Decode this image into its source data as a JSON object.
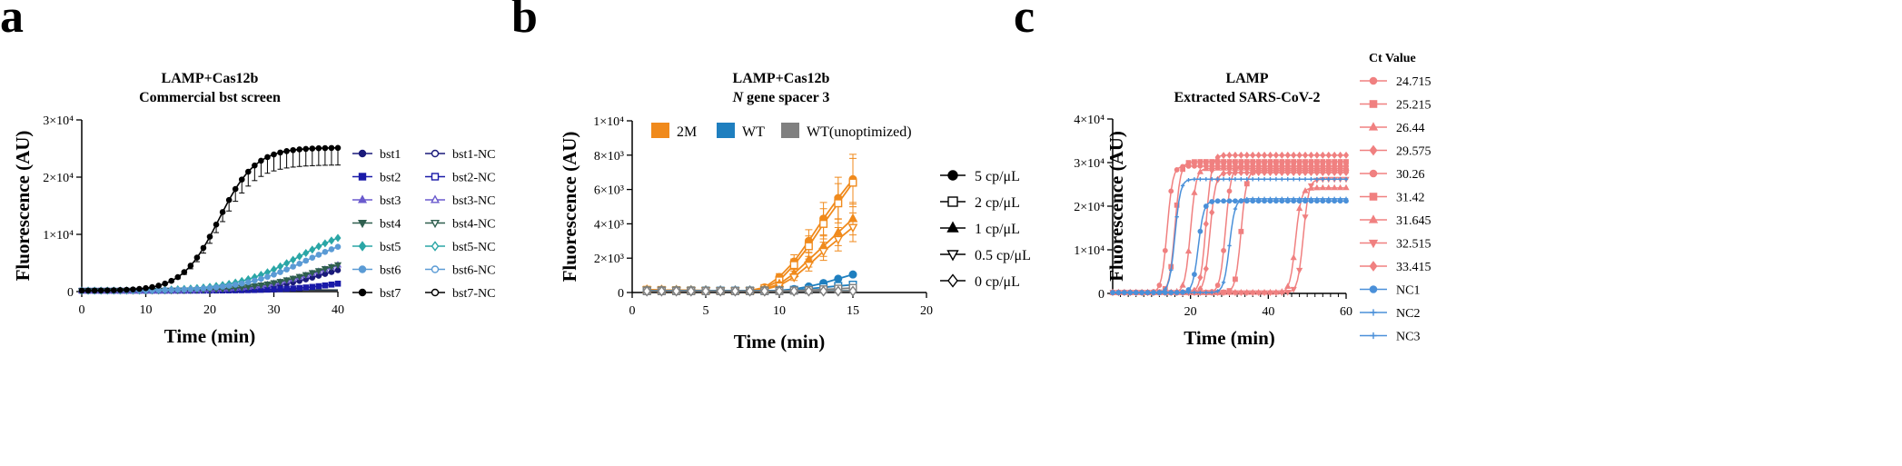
{
  "panels": {
    "a": {
      "label": "a"
    },
    "b": {
      "label": "b"
    },
    "c": {
      "label": "c"
    }
  },
  "chart_data": [
    {
      "id": "a",
      "type": "line",
      "title": [
        "LAMP+Cas12b",
        "Commercial bst screen"
      ],
      "xlabel": "Time (min)",
      "ylabel": "Fluorescence (AU)",
      "xlim": [
        0,
        40
      ],
      "ylim": [
        0,
        30000
      ],
      "xticks": [
        0,
        10,
        20,
        30,
        40
      ],
      "yticks": [
        {
          "value": 0,
          "label": "0"
        },
        {
          "value": 10000,
          "label": "1×10⁴"
        },
        {
          "value": 20000,
          "label": "2×10⁴"
        },
        {
          "value": 30000,
          "label": "3×10⁴"
        }
      ],
      "legend_position": "right",
      "series": [
        {
          "name": "bst1",
          "color": "#1a1a7a",
          "marker": "circle",
          "fill": true,
          "onset": 20,
          "max": 6000,
          "k": 0.22
        },
        {
          "name": "bst2",
          "color": "#1a1aa8",
          "marker": "square",
          "fill": true,
          "onset": 24,
          "max": 4000,
          "k": 0.2
        },
        {
          "name": "bst3",
          "color": "#6a5acd",
          "marker": "triangle",
          "fill": true,
          "onset": 18,
          "max": 7500,
          "k": 0.2
        },
        {
          "name": "bst4",
          "color": "#2f5f4f",
          "marker": "triangle-down",
          "fill": true,
          "onset": 17,
          "max": 7000,
          "k": 0.2
        },
        {
          "name": "bst5",
          "color": "#2aa6a6",
          "marker": "diamond",
          "fill": true,
          "onset": 14,
          "max": 12000,
          "k": 0.2
        },
        {
          "name": "bst6",
          "color": "#5b9bd5",
          "marker": "circle",
          "fill": true,
          "onset": 15,
          "max": 10500,
          "k": 0.2
        },
        {
          "name": "bst7",
          "color": "#000000",
          "marker": "circle",
          "fill": true,
          "onset": 10,
          "max": 25000,
          "k": 0.35,
          "errorbars": true
        },
        {
          "name": "bst1-NC",
          "color": "#1a1a7a",
          "marker": "circle",
          "fill": false
        },
        {
          "name": "bst2-NC",
          "color": "#1a1aa8",
          "marker": "square",
          "fill": false
        },
        {
          "name": "bst3-NC",
          "color": "#6a5acd",
          "marker": "triangle",
          "fill": false
        },
        {
          "name": "bst4-NC",
          "color": "#2f5f4f",
          "marker": "triangle-down",
          "fill": false
        },
        {
          "name": "bst5-NC",
          "color": "#2aa6a6",
          "marker": "diamond",
          "fill": false
        },
        {
          "name": "bst6-NC",
          "color": "#5b9bd5",
          "marker": "circle",
          "fill": false
        },
        {
          "name": "bst7-NC",
          "color": "#000000",
          "marker": "circle",
          "fill": false
        }
      ]
    },
    {
      "id": "b",
      "type": "line",
      "title": [
        "LAMP+Cas12b",
        "N gene spacer 3"
      ],
      "title_italic_word": "N",
      "xlabel": "Time (min)",
      "ylabel": "Fluorescence (AU)",
      "xlim": [
        0,
        20
      ],
      "ylim": [
        0,
        10000
      ],
      "xticks": [
        0,
        5,
        10,
        15,
        20
      ],
      "yticks": [
        {
          "value": 0,
          "label": "0"
        },
        {
          "value": 2000,
          "label": "2×10³"
        },
        {
          "value": 4000,
          "label": "4×10³"
        },
        {
          "value": 6000,
          "label": "6×10³"
        },
        {
          "value": 8000,
          "label": "8×10³"
        },
        {
          "value": 10000,
          "label": "1×10⁴"
        }
      ],
      "groups": [
        {
          "name": "2M",
          "color": "#f08a1c"
        },
        {
          "name": "WT",
          "color": "#1f7fbf"
        },
        {
          "name": "WT(unoptimized)",
          "color": "#808080"
        }
      ],
      "concentrations": [
        {
          "name": "5 cp/μL",
          "marker": "circle",
          "fill": true
        },
        {
          "name": "2 cp/μL",
          "marker": "square",
          "fill": false
        },
        {
          "name": "1 cp/μL",
          "marker": "triangle",
          "fill": true
        },
        {
          "name": "0.5 cp/μL",
          "marker": "triangle-down",
          "fill": false
        },
        {
          "name": "0 cp/μL",
          "marker": "diamond",
          "fill": false
        }
      ],
      "x": [
        1,
        2,
        3,
        4,
        5,
        6,
        7,
        8,
        9,
        10,
        11,
        12,
        13,
        14,
        15
      ],
      "series": [
        {
          "group": "2M",
          "conc": "5 cp/μL",
          "values": [
            150,
            140,
            130,
            120,
            110,
            100,
            100,
            110,
            300,
            900,
            1800,
            3000,
            4300,
            5500,
            6600
          ],
          "errorbars": true
        },
        {
          "group": "2M",
          "conc": "2 cp/μL",
          "values": [
            150,
            140,
            130,
            120,
            110,
            100,
            100,
            110,
            250,
            700,
            1600,
            2700,
            4000,
            5200,
            6400
          ],
          "errorbars": true
        },
        {
          "group": "2M",
          "conc": "1 cp/μL",
          "values": [
            150,
            140,
            130,
            120,
            110,
            100,
            100,
            100,
            200,
            500,
            1100,
            1900,
            2700,
            3500,
            4300
          ],
          "errorbars": true
        },
        {
          "group": "2M",
          "conc": "0.5 cp/μL",
          "values": [
            150,
            140,
            130,
            120,
            110,
            100,
            100,
            100,
            180,
            400,
            900,
            1600,
            2400,
            3100,
            3800
          ],
          "errorbars": true
        },
        {
          "group": "2M",
          "conc": "0 cp/μL",
          "values": [
            150,
            140,
            130,
            120,
            110,
            100,
            100,
            100,
            100,
            100,
            100,
            100,
            100,
            100,
            100
          ]
        },
        {
          "group": "WT",
          "conc": "5 cp/μL",
          "values": [
            100,
            100,
            100,
            100,
            100,
            100,
            100,
            100,
            100,
            120,
            200,
            350,
            550,
            800,
            1050
          ]
        },
        {
          "group": "WT",
          "conc": "2 cp/μL",
          "values": [
            100,
            100,
            100,
            100,
            100,
            100,
            100,
            100,
            100,
            110,
            150,
            220,
            300,
            380,
            450
          ]
        },
        {
          "group": "WT",
          "conc": "0 cp/μL",
          "values": [
            100,
            100,
            100,
            100,
            100,
            100,
            100,
            100,
            100,
            100,
            100,
            100,
            100,
            100,
            100
          ]
        },
        {
          "group": "WT(unoptimized)",
          "conc": "2 cp/μL",
          "values": [
            80,
            80,
            80,
            80,
            80,
            80,
            80,
            80,
            80,
            90,
            110,
            140,
            180,
            220,
            260
          ]
        },
        {
          "group": "WT(unoptimized)",
          "conc": "0 cp/μL",
          "values": [
            80,
            80,
            80,
            80,
            80,
            80,
            80,
            80,
            80,
            80,
            80,
            80,
            80,
            80,
            80
          ]
        }
      ]
    },
    {
      "id": "c",
      "type": "line",
      "title": [
        "LAMP",
        "Extracted SARS-CoV-2"
      ],
      "xlabel": "Time (min)",
      "ylabel": "Fluorescence (AU)",
      "xlim": [
        0,
        60
      ],
      "ylim": [
        0,
        40000
      ],
      "xticks": [
        20,
        40,
        60
      ],
      "yticks": [
        {
          "value": 0,
          "label": "0"
        },
        {
          "value": 10000,
          "label": "1×10⁴"
        },
        {
          "value": 20000,
          "label": "2×10⁴"
        },
        {
          "value": 30000,
          "label": "3×10⁴"
        },
        {
          "value": 40000,
          "label": "4×10⁴"
        }
      ],
      "legend_title": "Ct Value",
      "series": [
        {
          "name": "24.715",
          "color": "#f08080",
          "marker": "circle",
          "ct": 12,
          "max": 29000
        },
        {
          "name": "25.215",
          "color": "#f08080",
          "marker": "square",
          "ct": 14,
          "max": 30000
        },
        {
          "name": "26.44",
          "color": "#f08080",
          "marker": "triangle",
          "ct": 18,
          "max": 28500
        },
        {
          "name": "29.575",
          "color": "#f08080",
          "marker": "diamond",
          "ct": 23,
          "max": 27500
        },
        {
          "name": "30.26",
          "color": "#f08080",
          "marker": "circle",
          "ct": 27,
          "max": 29000
        },
        {
          "name": "31.42",
          "color": "#f08080",
          "marker": "square",
          "ct": 31,
          "max": 28000
        },
        {
          "name": "31.645",
          "color": "#f08080",
          "marker": "triangle",
          "ct": 45,
          "max": 24000
        },
        {
          "name": "32.515",
          "color": "#f08080",
          "marker": "triangle-down",
          "ct": 47,
          "max": 26000
        },
        {
          "name": "33.415",
          "color": "#f08080",
          "marker": "diamond",
          "ct": 22,
          "max": 31500
        },
        {
          "name": "NC1",
          "color": "#4a90d9",
          "marker": "circle",
          "ct": 20,
          "max": 21000
        },
        {
          "name": "NC2",
          "color": "#4a90d9",
          "marker": "plus",
          "ct": 14,
          "max": 26000
        },
        {
          "name": "NC3",
          "color": "#4a90d9",
          "marker": "plus",
          "ct": 28,
          "max": 21500
        }
      ]
    }
  ]
}
